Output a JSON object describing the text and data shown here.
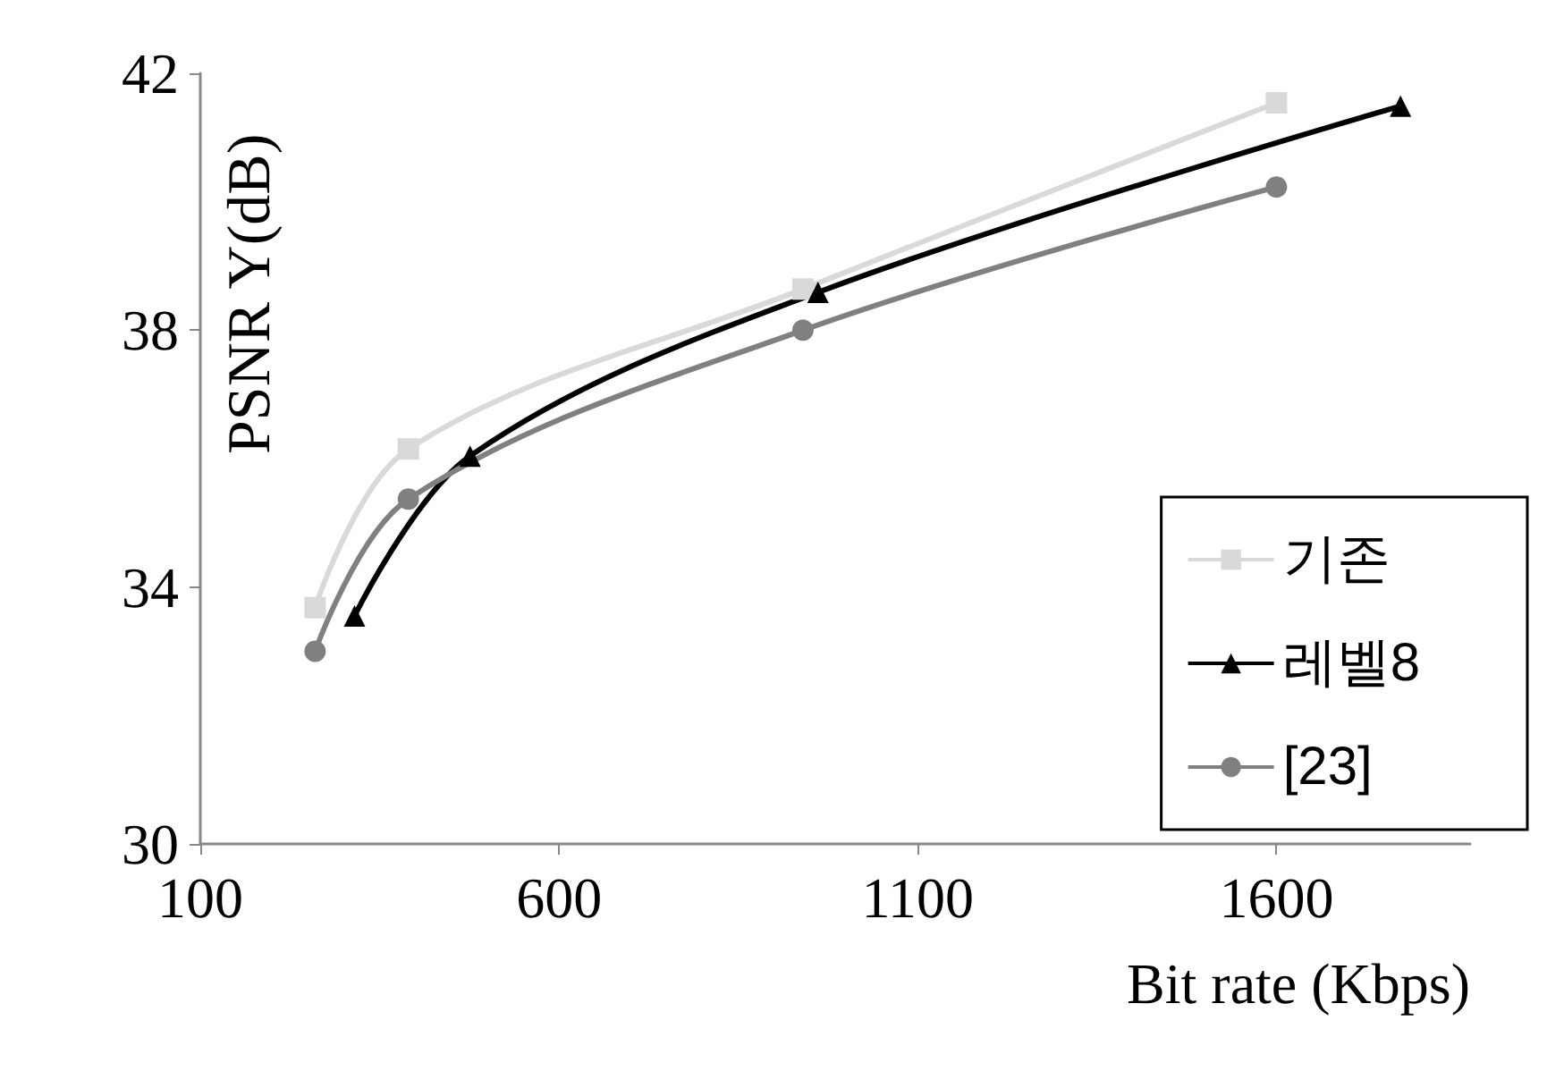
{
  "chart_data": {
    "type": "line",
    "xlabel": "Bit rate (Kbps)",
    "ylabel": "PSNR Y(dB)",
    "xlim": [
      100,
      1870
    ],
    "xticks": [
      100,
      600,
      1100,
      1600
    ],
    "ylim": [
      30,
      42
    ],
    "yticks": [
      30,
      34,
      38,
      42
    ],
    "grid": false,
    "legend": "bottom right",
    "series": [
      {
        "name": "기존",
        "color": "#d9d9d9",
        "marker": "square",
        "x": [
          260,
          390,
          940,
          1600
        ],
        "values": [
          33.68,
          36.15,
          38.64,
          41.54
        ]
      },
      {
        "name": "레벨8",
        "color": "#000000",
        "marker": "triangle",
        "x": [
          315,
          476,
          961,
          1773
        ],
        "values": [
          33.55,
          36.04,
          38.59,
          41.49
        ]
      },
      {
        "name": "[23]",
        "color": "#808080",
        "marker": "circle",
        "x": [
          260,
          390,
          940,
          1600
        ],
        "values": [
          33.0,
          35.37,
          38.0,
          40.23
        ]
      }
    ]
  }
}
